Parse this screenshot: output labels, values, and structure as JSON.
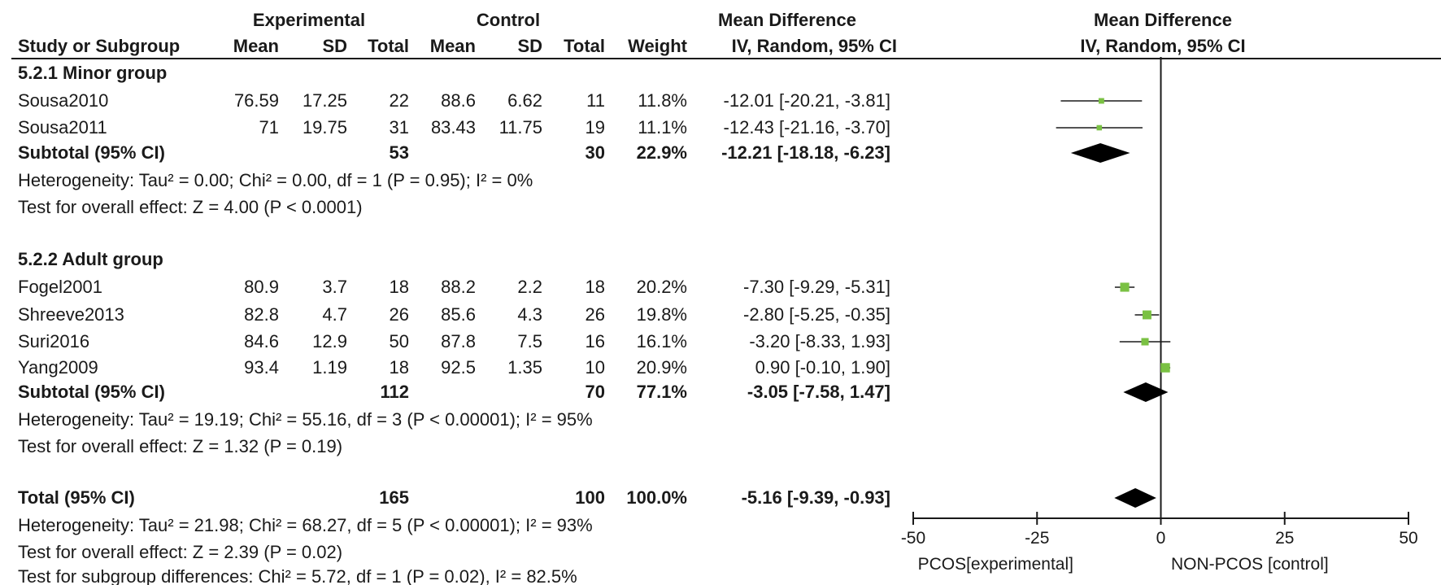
{
  "header": {
    "group_experimental": "Experimental",
    "group_control": "Control",
    "md_header": "Mean Difference",
    "plot_header": "Mean Difference",
    "col_study": "Study or Subgroup",
    "col_exp_mean": "Mean",
    "col_exp_sd": "SD",
    "col_exp_total": "Total",
    "col_ctl_mean": "Mean",
    "col_ctl_sd": "SD",
    "col_ctl_total": "Total",
    "col_weight": "Weight",
    "col_ci": "IV, Random, 95% CI",
    "plot_method": "IV, Random, 95% CI"
  },
  "subgroups": [
    {
      "title": "5.2.1 Minor group",
      "studies": [
        {
          "name": "Sousa2010",
          "exp_mean": "76.59",
          "exp_sd": "17.25",
          "exp_total": "22",
          "ctl_mean": "88.6",
          "ctl_sd": "6.62",
          "ctl_total": "11",
          "weight": "11.8%",
          "ci_text": "-12.01 [-20.21, -3.81]"
        },
        {
          "name": "Sousa2011",
          "exp_mean": "71",
          "exp_sd": "19.75",
          "exp_total": "31",
          "ctl_mean": "83.43",
          "ctl_sd": "11.75",
          "ctl_total": "19",
          "weight": "11.1%",
          "ci_text": "-12.43 [-21.16, -3.70]"
        }
      ],
      "subtotal": {
        "label": "Subtotal (95% CI)",
        "exp_total": "53",
        "ctl_total": "30",
        "weight": "22.9%",
        "ci_text": "-12.21 [-18.18, -6.23]"
      },
      "heterogeneity": "Heterogeneity: Tau² = 0.00; Chi² = 0.00, df = 1 (P = 0.95); I² = 0%",
      "overall": "Test for overall effect: Z = 4.00 (P < 0.0001)"
    },
    {
      "title": "5.2.2 Adult group",
      "studies": [
        {
          "name": "Fogel2001",
          "exp_mean": "80.9",
          "exp_sd": "3.7",
          "exp_total": "18",
          "ctl_mean": "88.2",
          "ctl_sd": "2.2",
          "ctl_total": "18",
          "weight": "20.2%",
          "ci_text": "-7.30 [-9.29, -5.31]"
        },
        {
          "name": "Shreeve2013",
          "exp_mean": "82.8",
          "exp_sd": "4.7",
          "exp_total": "26",
          "ctl_mean": "85.6",
          "ctl_sd": "4.3",
          "ctl_total": "26",
          "weight": "19.8%",
          "ci_text": "-2.80 [-5.25, -0.35]"
        },
        {
          "name": "Suri2016",
          "exp_mean": "84.6",
          "exp_sd": "12.9",
          "exp_total": "50",
          "ctl_mean": "87.8",
          "ctl_sd": "7.5",
          "ctl_total": "16",
          "weight": "16.1%",
          "ci_text": "-3.20 [-8.33, 1.93]"
        },
        {
          "name": "Yang2009",
          "exp_mean": "93.4",
          "exp_sd": "1.19",
          "exp_total": "18",
          "ctl_mean": "92.5",
          "ctl_sd": "1.35",
          "ctl_total": "10",
          "weight": "20.9%",
          "ci_text": "0.90 [-0.10, 1.90]"
        }
      ],
      "subtotal": {
        "label": "Subtotal (95% CI)",
        "exp_total": "112",
        "ctl_total": "70",
        "weight": "77.1%",
        "ci_text": "-3.05 [-7.58, 1.47]"
      },
      "heterogeneity": "Heterogeneity: Tau² = 19.19; Chi² = 55.16, df = 3 (P < 0.00001); I² = 95%",
      "overall": "Test for overall effect: Z = 1.32 (P = 0.19)"
    }
  ],
  "total": {
    "label": "Total (95% CI)",
    "exp_total": "165",
    "ctl_total": "100",
    "weight": "100.0%",
    "ci_text": "-5.16 [-9.39, -0.93]",
    "heterogeneity": "Heterogeneity: Tau² = 21.98; Chi² = 68.27, df = 5 (P < 0.00001); I² = 93%",
    "overall": "Test for overall effect: Z = 2.39 (P = 0.02)",
    "subgroup_diff": "Test for subgroup differences: Chi² = 5.72, df = 1 (P = 0.02), I² = 82.5%"
  },
  "axis_footer": {
    "favours_left": "PCOS[experimental]",
    "favours_right": "NON-PCOS [control]"
  },
  "colors": {
    "study_marker": "#7ac143",
    "diamond": "#000000",
    "line": "#1a1a1a"
  },
  "chart_data": {
    "type": "forest",
    "xlim": [
      -50,
      50
    ],
    "x_ticks": [
      -50,
      -25,
      0,
      25,
      50
    ],
    "x_tick_labels": [
      "-50",
      "-25",
      "0",
      "25",
      "50"
    ],
    "studies": [
      {
        "name": "Sousa2010",
        "md": -12.01,
        "lower": -20.21,
        "upper": -3.81,
        "weight": 11.8
      },
      {
        "name": "Sousa2011",
        "md": -12.43,
        "lower": -21.16,
        "upper": -3.7,
        "weight": 11.1
      },
      {
        "name": "Fogel2001",
        "md": -7.3,
        "lower": -9.29,
        "upper": -5.31,
        "weight": 20.2
      },
      {
        "name": "Shreeve2013",
        "md": -2.8,
        "lower": -5.25,
        "upper": -0.35,
        "weight": 19.8
      },
      {
        "name": "Suri2016",
        "md": -3.2,
        "lower": -8.33,
        "upper": 1.93,
        "weight": 16.1
      },
      {
        "name": "Yang2009",
        "md": 0.9,
        "lower": -0.1,
        "upper": 1.9,
        "weight": 20.9
      }
    ],
    "pooled": [
      {
        "name": "Subtotal 5.2.1",
        "md": -12.21,
        "lower": -18.18,
        "upper": -6.23
      },
      {
        "name": "Subtotal 5.2.2",
        "md": -3.05,
        "lower": -7.58,
        "upper": 1.47
      },
      {
        "name": "Total",
        "md": -5.16,
        "lower": -9.39,
        "upper": -0.93
      }
    ]
  }
}
